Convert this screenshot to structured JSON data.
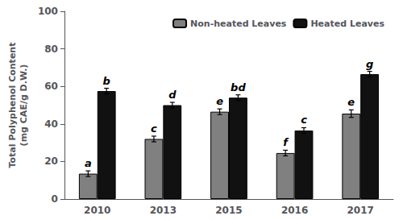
{
  "chart_data": {
    "type": "bar",
    "ylabel": "Total Polyphenol Content\n(mg CAE/g D.W.)",
    "categories": [
      "2010",
      "2013",
      "2015",
      "2016",
      "2017"
    ],
    "series": [
      {
        "name": "Non-heated Leaves",
        "color": "#808080",
        "values": [
          13.5,
          32.0,
          46.5,
          24.5,
          45.5
        ],
        "errors": [
          1.5,
          1.5,
          1.5,
          1.5,
          2.0
        ],
        "annotations": [
          "a",
          "c",
          "e",
          "f",
          "e"
        ]
      },
      {
        "name": "Heated Leaves",
        "color": "#111111",
        "values": [
          57.5,
          50.0,
          54.0,
          36.5,
          66.5
        ],
        "errors": [
          1.5,
          1.5,
          1.5,
          1.5,
          1.5
        ],
        "annotations": [
          "b",
          "d",
          "bd",
          "c",
          "g"
        ]
      }
    ],
    "ylim": [
      0,
      100
    ],
    "yticks": [
      0,
      20,
      40,
      60,
      80,
      100
    ],
    "grid": false,
    "legend": "upper right"
  }
}
